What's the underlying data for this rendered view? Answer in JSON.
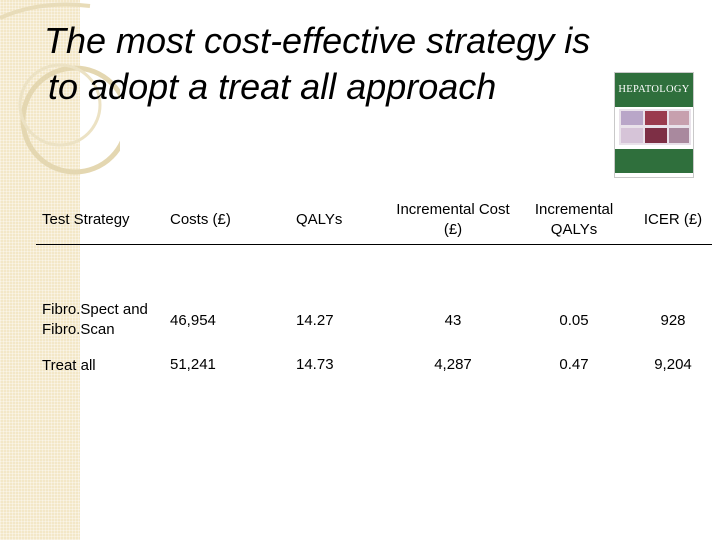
{
  "slide": {
    "title_line1": "The most cost-effective strategy is",
    "title_line2": "to adopt a treat all approach"
  },
  "cover": {
    "journal_name": "HEPATOLOGY",
    "brand_color": "#2f6f3c"
  },
  "table": {
    "headers": [
      "Test Strategy",
      "Costs (£)",
      "QALYs",
      "Incremental Cost (£)",
      "Incremental QALYs",
      "ICER (£)"
    ],
    "rows": [
      [
        "Fibro.Spect and Fibro.Scan",
        "46,954",
        "14.27",
        "43",
        "0.05",
        "928"
      ],
      [
        "Treat all",
        "51,241",
        "14.73",
        "4,287",
        "0.47",
        "9,204"
      ]
    ]
  },
  "theme": {
    "band_color": "#f3e7c7"
  }
}
